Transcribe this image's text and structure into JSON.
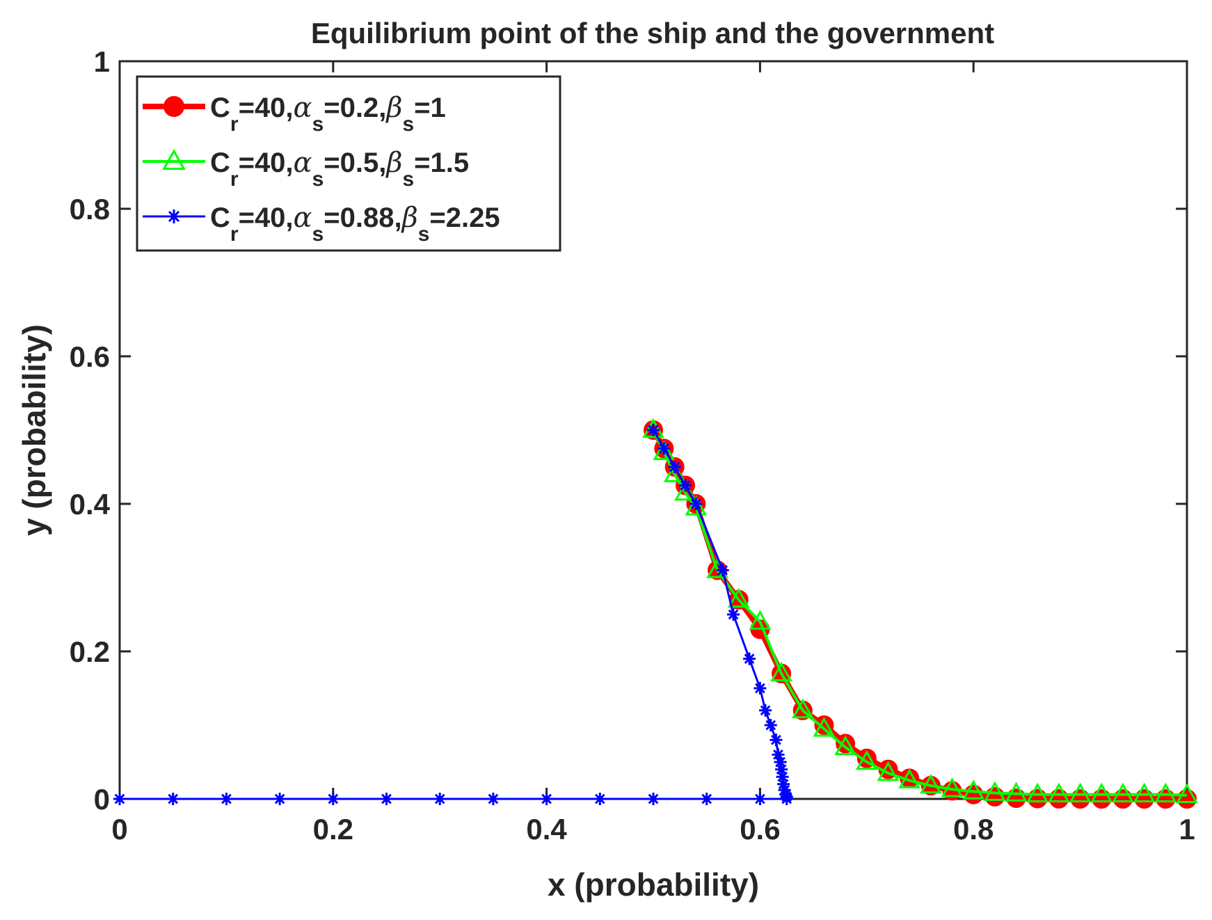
{
  "chart_data": {
    "type": "line",
    "title": "Equilibrium point of the ship and the government",
    "xlabel": "x (probability)",
    "ylabel": "y (probability)",
    "xlim": [
      0,
      1
    ],
    "ylim": [
      0,
      1
    ],
    "xticks": [
      0,
      0.2,
      0.4,
      0.6,
      0.8,
      1
    ],
    "yticks": [
      0,
      0.2,
      0.4,
      0.6,
      0.8,
      1
    ],
    "xtick_labels": [
      "0",
      "0.2",
      "0.4",
      "0.6",
      "0.8",
      "1"
    ],
    "ytick_labels": [
      "0",
      "0.2",
      "0.4",
      "0.6",
      "0.8",
      "1"
    ],
    "grid": false,
    "legend_position": "top-left",
    "series": [
      {
        "legend": {
          "prefix": "C",
          "sub1": "r",
          "mid1": "=40,",
          "greek1": "α",
          "sub2": "s",
          "mid2": "=0.2,",
          "greek2": "β",
          "sub3": "s",
          "end": "=1"
        },
        "color": "#ff0000",
        "marker": "circle",
        "x": [
          0.5,
          0.51,
          0.52,
          0.53,
          0.54,
          0.56,
          0.58,
          0.6,
          0.62,
          0.64,
          0.66,
          0.68,
          0.7,
          0.72,
          0.74,
          0.76,
          0.78,
          0.8,
          0.82,
          0.84,
          0.86,
          0.88,
          0.9,
          0.92,
          0.94,
          0.96,
          0.98,
          1.0
        ],
        "y": [
          0.5,
          0.475,
          0.45,
          0.425,
          0.4,
          0.31,
          0.27,
          0.23,
          0.17,
          0.12,
          0.1,
          0.075,
          0.055,
          0.04,
          0.028,
          0.018,
          0.011,
          0.006,
          0.003,
          0.001,
          0.0005,
          0.0002,
          0.0,
          0.0,
          0.0,
          0.0,
          0.0,
          0.0
        ]
      },
      {
        "legend": {
          "prefix": "C",
          "sub1": "r",
          "mid1": "=40,",
          "greek1": "α",
          "sub2": "s",
          "mid2": "=0.5,",
          "greek2": "β",
          "sub3": "s",
          "end": "=1.5"
        },
        "color": "#00ff00",
        "marker": "triangle",
        "x": [
          0.5,
          0.51,
          0.52,
          0.53,
          0.54,
          0.56,
          0.58,
          0.6,
          0.62,
          0.64,
          0.66,
          0.68,
          0.7,
          0.72,
          0.74,
          0.76,
          0.78,
          0.8,
          0.82,
          0.84,
          0.86,
          0.88,
          0.9,
          0.92,
          0.94,
          0.96,
          0.98,
          1.0
        ],
        "y": [
          0.5,
          0.47,
          0.44,
          0.415,
          0.395,
          0.31,
          0.27,
          0.24,
          0.17,
          0.12,
          0.095,
          0.07,
          0.05,
          0.035,
          0.025,
          0.018,
          0.013,
          0.01,
          0.008,
          0.007,
          0.006,
          0.006,
          0.006,
          0.006,
          0.006,
          0.006,
          0.006,
          0.005
        ]
      },
      {
        "legend": {
          "prefix": "C",
          "sub1": "r",
          "mid1": "=40,",
          "greek1": "α",
          "sub2": "s",
          "mid2": "=0.88,",
          "greek2": "β",
          "sub3": "s",
          "end": "=2.25"
        },
        "color": "#0000ff",
        "marker": "star",
        "x": [
          0.5,
          0.51,
          0.52,
          0.53,
          0.54,
          0.565,
          0.575,
          0.59,
          0.6,
          0.605,
          0.61,
          0.615,
          0.617,
          0.619,
          0.62,
          0.621,
          0.622,
          0.623,
          0.624,
          0.625,
          0.625,
          0.6,
          0.55,
          0.5,
          0.45,
          0.4,
          0.35,
          0.3,
          0.25,
          0.2,
          0.15,
          0.1,
          0.05,
          0.0
        ],
        "y": [
          0.5,
          0.475,
          0.45,
          0.425,
          0.4,
          0.31,
          0.25,
          0.19,
          0.15,
          0.12,
          0.1,
          0.08,
          0.06,
          0.05,
          0.04,
          0.03,
          0.02,
          0.012,
          0.006,
          0.003,
          0.0,
          0.0,
          0.0,
          0.0,
          0.0,
          0.0,
          0.0,
          0.0,
          0.0,
          0.0,
          0.0,
          0.0,
          0.0,
          0.0
        ]
      }
    ]
  }
}
